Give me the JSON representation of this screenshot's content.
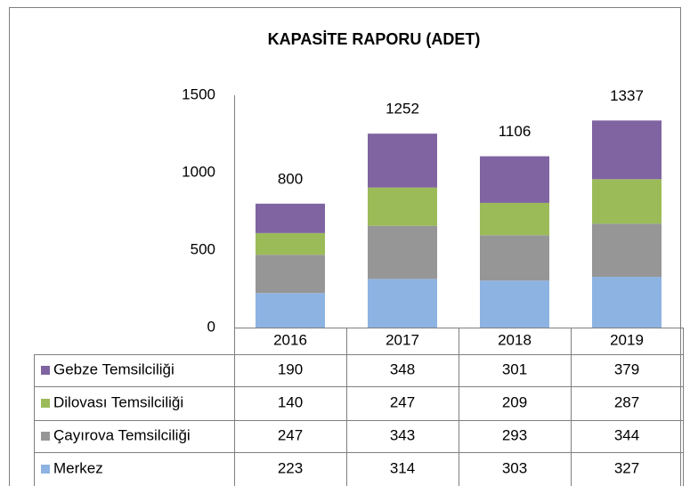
{
  "chart_data": {
    "type": "stacked_bar",
    "title": "KAPASİTE RAPORU (ADET)",
    "categories": [
      "2016",
      "2017",
      "2018",
      "2019"
    ],
    "series": [
      {
        "name": "Gebze Temsilciliği",
        "color": "#8064a2",
        "values": [
          190,
          348,
          301,
          379
        ]
      },
      {
        "name": "Dilovası Temsilciliği",
        "color": "#9bbb59",
        "values": [
          140,
          247,
          209,
          287
        ]
      },
      {
        "name": "Çayırova Temsilciliği",
        "color": "#969696",
        "values": [
          247,
          343,
          293,
          344
        ]
      },
      {
        "name": "Merkez",
        "color": "#8db3e2",
        "values": [
          223,
          314,
          303,
          327
        ]
      }
    ],
    "totals": [
      800,
      1252,
      1106,
      1337
    ],
    "ylim": [
      0,
      1500
    ],
    "yticks": [
      0,
      500,
      1000,
      1500
    ],
    "grid": false
  }
}
